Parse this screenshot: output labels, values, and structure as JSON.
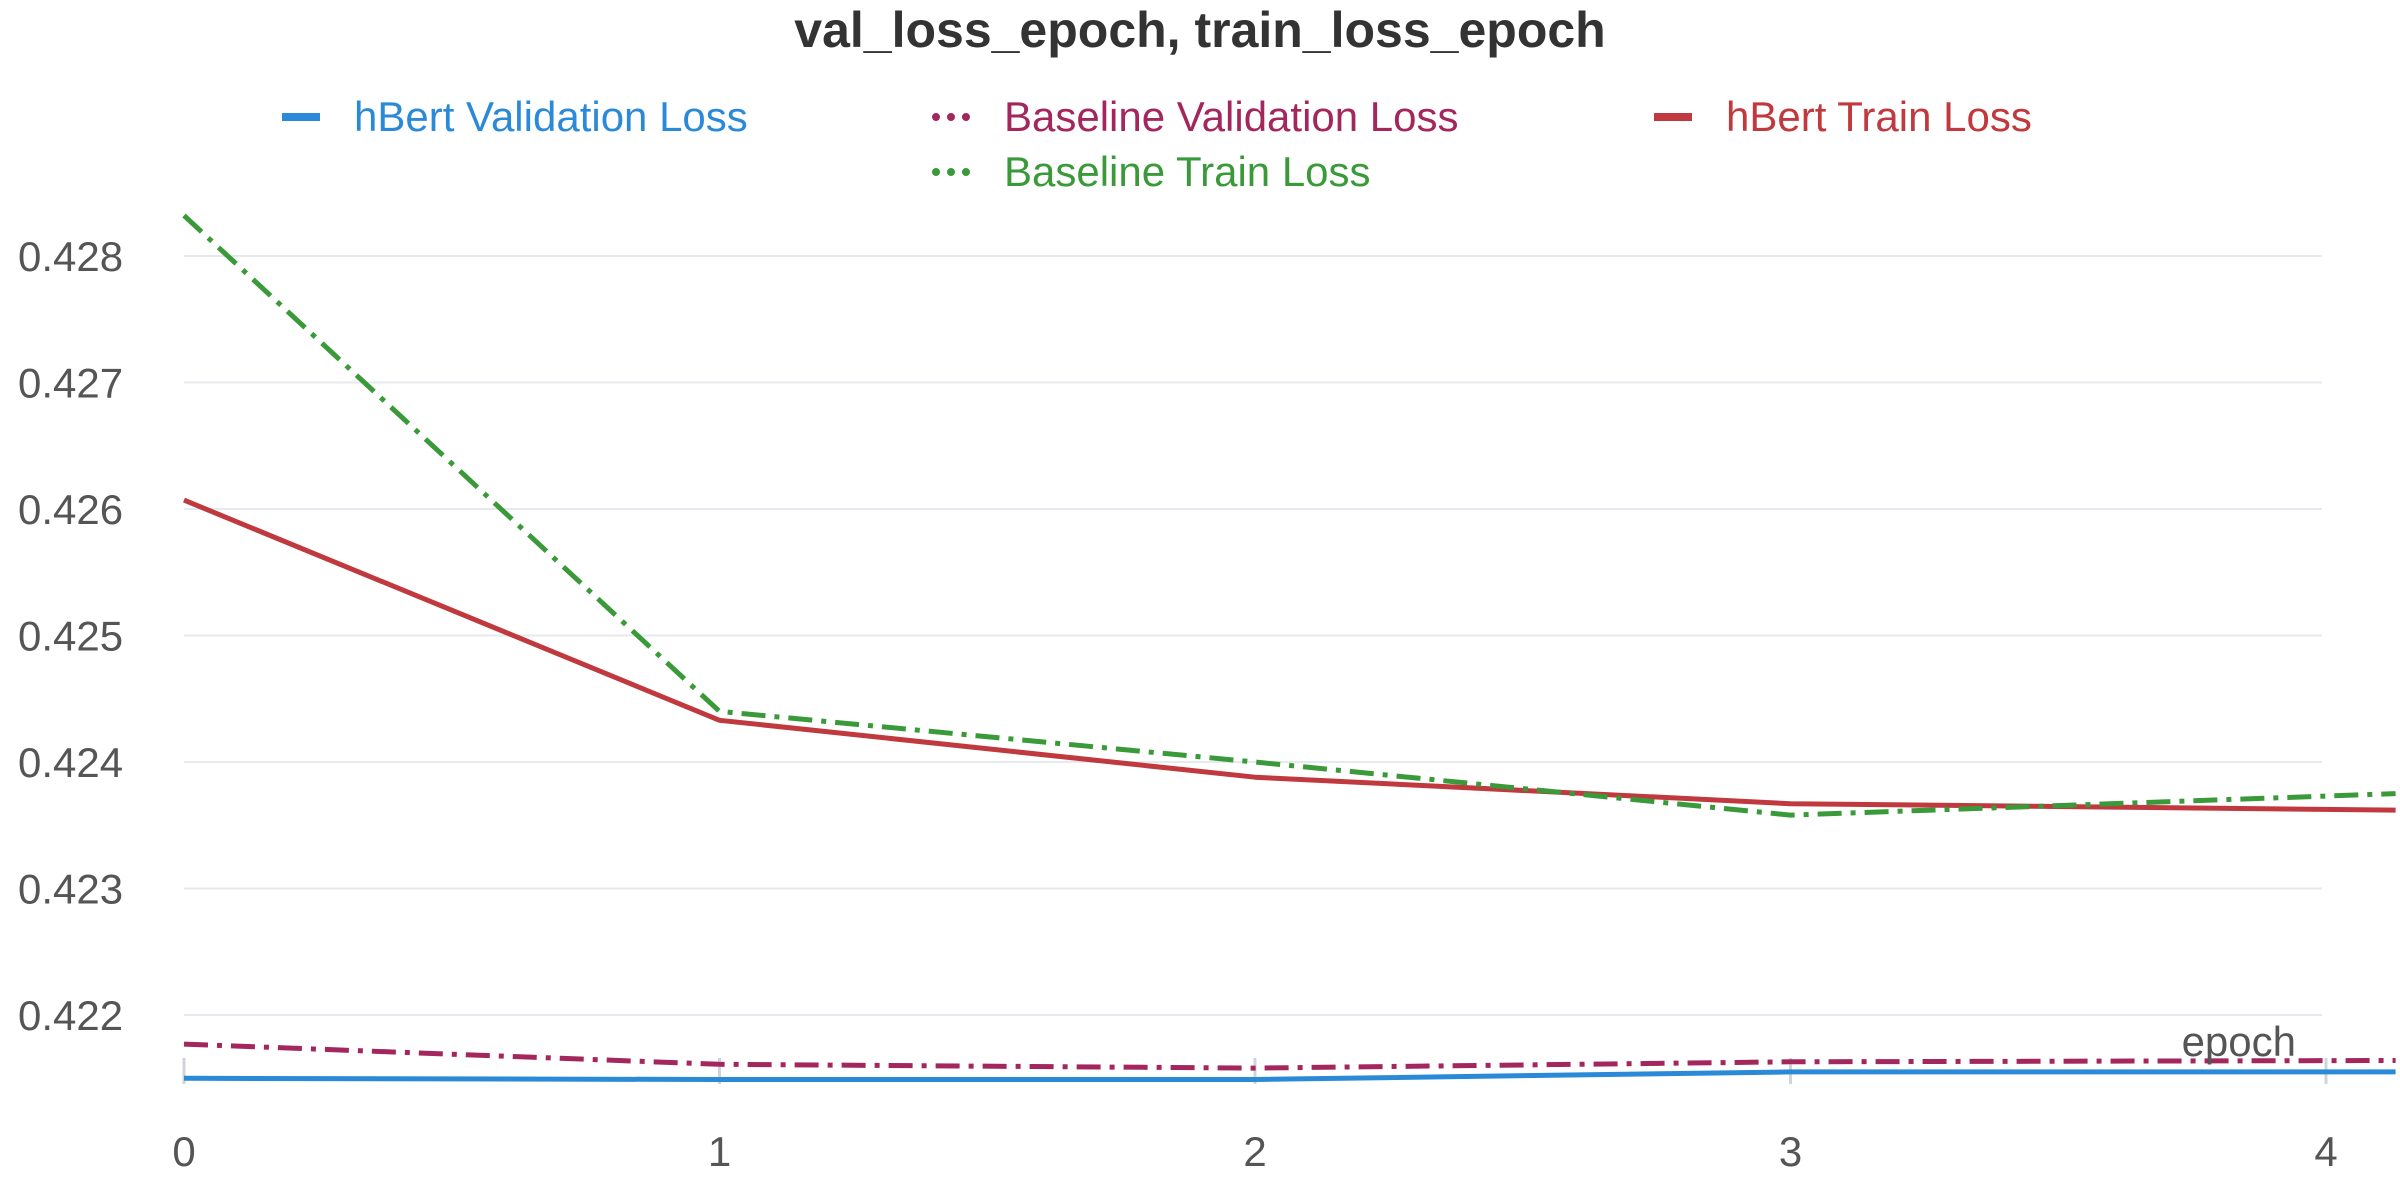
{
  "title": "val_loss_epoch, train_loss_epoch",
  "chart_data": {
    "type": "line",
    "title": "val_loss_epoch, train_loss_epoch",
    "xlabel": "epoch",
    "ylabel": "",
    "x": [
      0,
      1,
      2,
      3,
      4.13
    ],
    "xticks": [
      "0",
      "1",
      "2",
      "3",
      "4"
    ],
    "yticks": [
      "0.428",
      "0.427",
      "0.426",
      "0.425",
      "0.424",
      "0.423",
      "0.422"
    ],
    "xlim": [
      0,
      4.13
    ],
    "ylim": [
      0.42148,
      0.42845
    ],
    "grid": true,
    "legend_position": "top",
    "series": [
      {
        "name": "hBert Validation Loss",
        "color": "#2b8ad8",
        "style": "solid",
        "values": [
          0.4215,
          0.42149,
          0.42149,
          0.42155,
          0.42155
        ]
      },
      {
        "name": "Baseline Validation Loss",
        "color": "#a3265c",
        "style": "dashdot",
        "values": [
          0.42177,
          0.42161,
          0.42158,
          0.42163,
          0.42164
        ]
      },
      {
        "name": "hBert Train Loss",
        "color": "#c0393e",
        "style": "solid",
        "values": [
          0.42607,
          0.42433,
          0.42388,
          0.42367,
          0.42362
        ]
      },
      {
        "name": "Baseline Train Loss",
        "color": "#3a9a3a",
        "style": "dashdot",
        "values": [
          0.42832,
          0.4244,
          0.424,
          0.42358,
          0.42375
        ]
      }
    ]
  }
}
